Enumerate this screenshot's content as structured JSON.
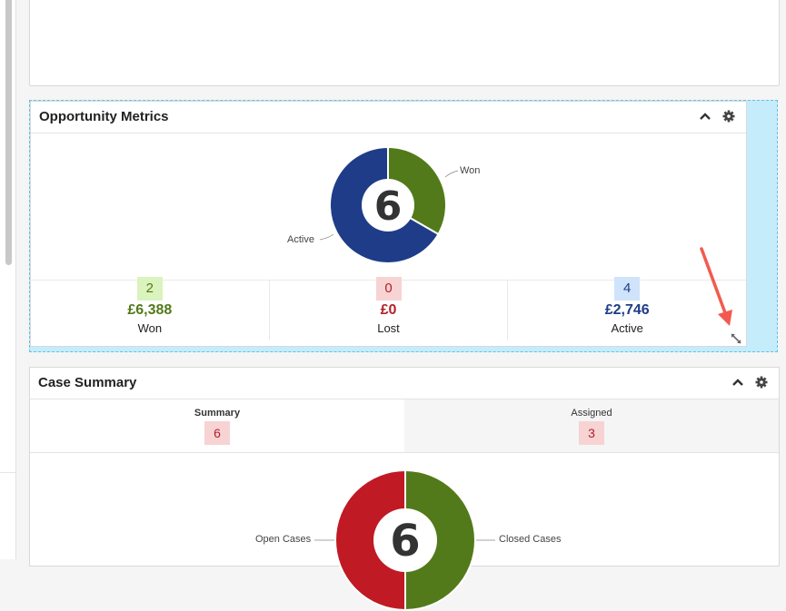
{
  "colors": {
    "won": "#527a1a",
    "active": "#1f3c88",
    "lost": "#b0222a",
    "open_cases": "#c01a24",
    "closed_cases": "#527a1a",
    "drop_zone": "#c4ecfb",
    "arrow": "#f25a4f"
  },
  "icons": [
    "collapse-chevron-up-icon",
    "gear-icon",
    "resize-diagonal-icon",
    "red-arrow-annotation"
  ],
  "opportunity_metrics": {
    "title": "Opportunity Metrics",
    "total": "6",
    "chart_data": {
      "type": "pie",
      "categories": [
        "Won",
        "Active"
      ],
      "values": [
        2,
        4
      ],
      "center_label": "6"
    },
    "labels": {
      "won": "Won",
      "active": "Active"
    },
    "metrics": [
      {
        "count": "2",
        "value": "£6,388",
        "label": "Won"
      },
      {
        "count": "0",
        "value": "£0",
        "label": "Lost"
      },
      {
        "count": "4",
        "value": "£2,746",
        "label": "Active"
      }
    ]
  },
  "case_summary": {
    "title": "Case Summary",
    "tabs": [
      {
        "label": "Summary",
        "count": "6"
      },
      {
        "label": "Assigned",
        "count": "3"
      }
    ],
    "total": "6",
    "chart_data": {
      "type": "pie",
      "categories": [
        "Open Cases",
        "Closed Cases"
      ],
      "values": [
        3,
        3
      ],
      "center_label": "6"
    },
    "labels": {
      "open": "Open Cases",
      "closed": "Closed Cases"
    }
  }
}
